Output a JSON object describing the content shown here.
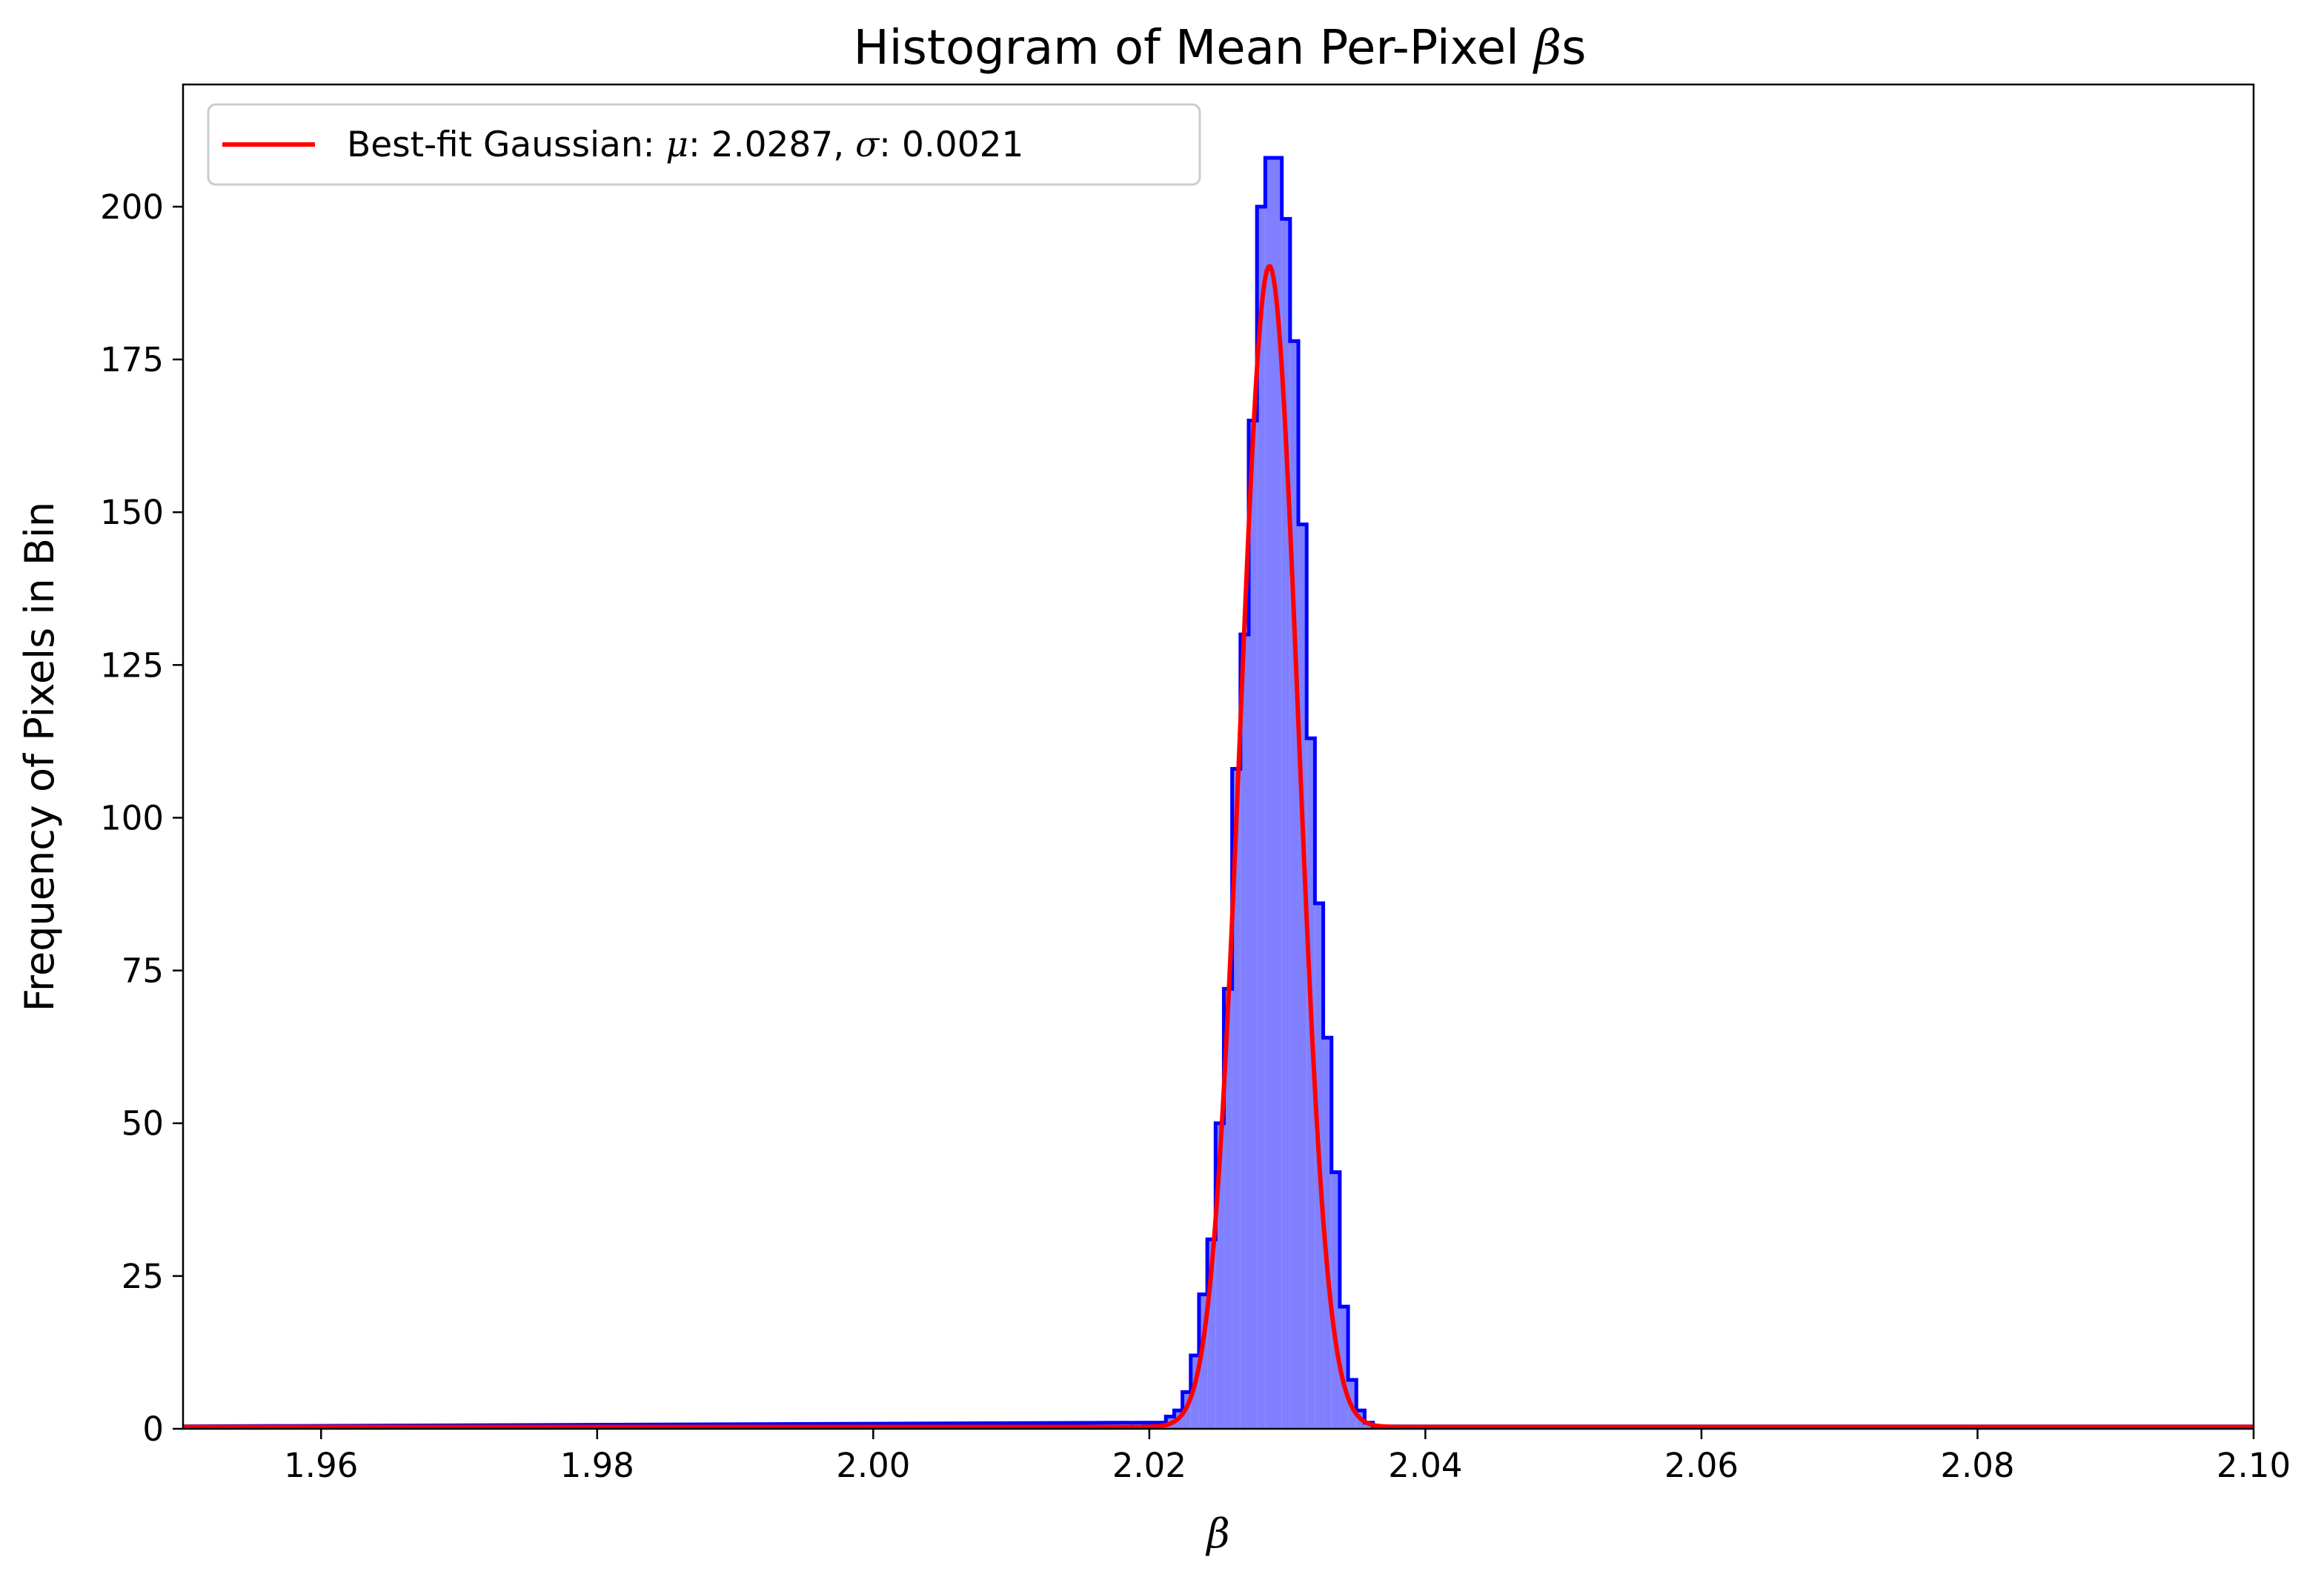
{
  "chart_data": {
    "type": "histogram",
    "title_prefix": "Histogram of Mean Per-Pixel ",
    "title_symbol": "β",
    "title_suffix": "s",
    "xlabel": "β",
    "ylabel": "Frequency of Pixels in Bin",
    "xlim": [
      1.95,
      2.1
    ],
    "ylim": [
      0,
      220
    ],
    "xticks": [
      1.96,
      1.98,
      2.0,
      2.02,
      2.04,
      2.06,
      2.08,
      2.1
    ],
    "xtick_labels": [
      "1.96",
      "1.98",
      "2.00",
      "2.02",
      "2.04",
      "2.06",
      "2.08",
      "2.10"
    ],
    "yticks": [
      0,
      25,
      50,
      75,
      100,
      125,
      150,
      175,
      200
    ],
    "ytick_labels": [
      "0",
      "25",
      "50",
      "75",
      "100",
      "125",
      "150",
      "175",
      "200"
    ],
    "grid": false,
    "legend_position": "upper-left",
    "legend": {
      "prefix": "Best-fit Gaussian: ",
      "mu_symbol": "μ",
      "mu_text": ": 2.0287, ",
      "sigma_symbol": "σ",
      "sigma_text": ": 0.0021"
    },
    "histogram": {
      "color": "#0000ff",
      "fill_color": "#8080ff",
      "bin_width": 0.0006,
      "bin_starts": [
        2.0194,
        2.02,
        2.0206,
        2.0212,
        2.0218,
        2.0224,
        2.023,
        2.0236,
        2.0242,
        2.0248,
        2.0254,
        2.026,
        2.0266,
        2.0272,
        2.0278,
        2.0284,
        2.029,
        2.0296,
        2.0302,
        2.0308,
        2.0314,
        2.032,
        2.0326,
        2.0332,
        2.0338,
        2.0344,
        2.035,
        2.0356
      ],
      "counts": [
        1,
        1,
        1,
        2,
        3,
        6,
        12,
        22,
        31,
        50,
        72,
        108,
        130,
        165,
        200,
        208,
        208,
        198,
        178,
        148,
        113,
        86,
        64,
        42,
        20,
        8,
        3,
        1
      ],
      "baseline": 0.4
    },
    "gaussian_fit": {
      "color": "#ff0000",
      "mu": 2.0287,
      "sigma": 0.0021,
      "amplitude": 190,
      "baseline": 0.3
    }
  }
}
